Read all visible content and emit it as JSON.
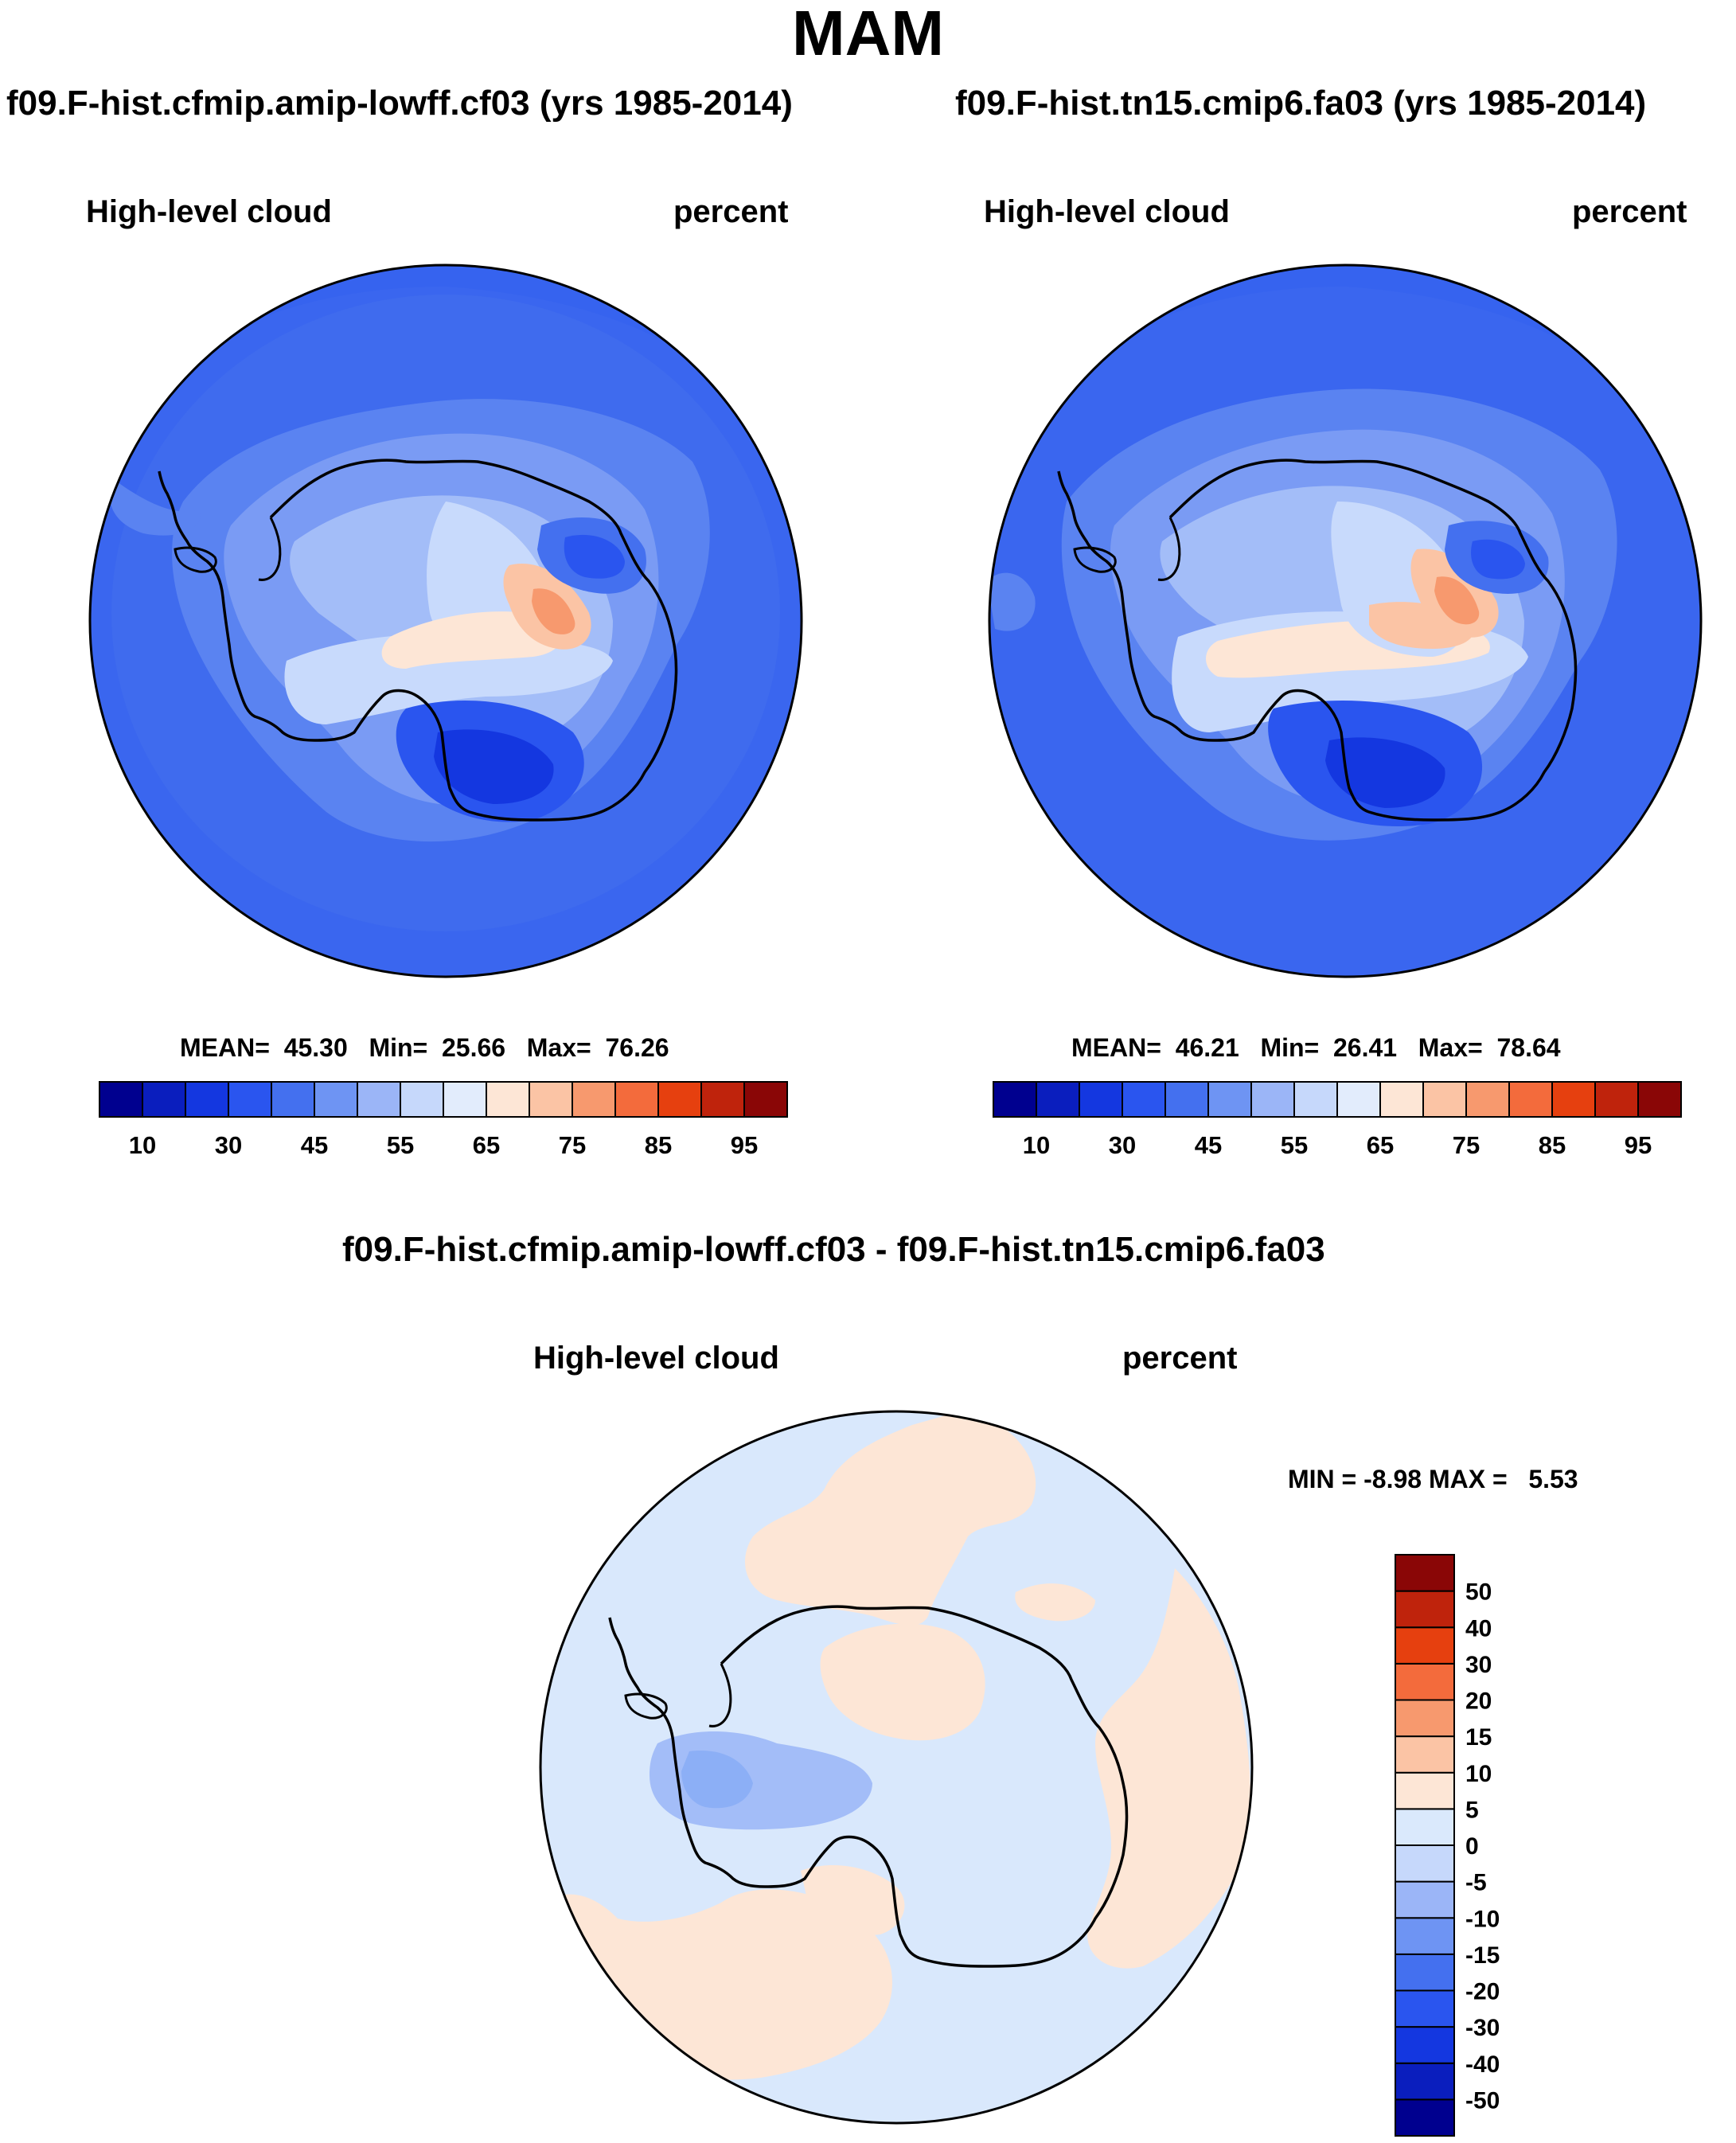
{
  "main_title": "MAM",
  "panels": [
    {
      "title": "f09.F-hist.cfmip.amip-lowff.cf03 (yrs 1985-2014)",
      "variable": "High-level cloud",
      "units": "percent",
      "stats": {
        "mean_label": "MEAN=",
        "mean": "45.30",
        "min_label": "Min=",
        "min": "25.66",
        "max_label": "Max=",
        "max": "76.26"
      }
    },
    {
      "title": "f09.F-hist.tn15.cmip6.fa03 (yrs 1985-2014)",
      "variable": "High-level cloud",
      "units": "percent",
      "stats": {
        "mean_label": "MEAN=",
        "mean": "46.21",
        "min_label": "Min=",
        "min": "26.41",
        "max_label": "Max=",
        "max": "78.64"
      }
    }
  ],
  "diff_panel": {
    "title": "f09.F-hist.cfmip.amip-lowff.cf03 - f09.F-hist.tn15.cmip6.fa03",
    "variable": "High-level cloud",
    "units": "percent",
    "min_max": {
      "min_label": "MIN =",
      "min": "-8.98",
      "max_label": "MAX =",
      "max": "5.53"
    }
  },
  "colorbar_main": {
    "colors": [
      "#00008f",
      "#0a1ebe",
      "#1437e0",
      "#2a55ef",
      "#4470ef",
      "#6e94f3",
      "#9bb5f7",
      "#c6d8fb",
      "#e2ecfc",
      "#fde6d6",
      "#fbc4a5",
      "#f7996e",
      "#f36b3c",
      "#e6400f",
      "#bf230c",
      "#8a0606"
    ],
    "labels": [
      "10",
      "30",
      "45",
      "55",
      "65",
      "75",
      "85",
      "95"
    ]
  },
  "colorbar_diff": {
    "colors": [
      "#00008f",
      "#0a1ebe",
      "#1437e0",
      "#2a55ef",
      "#4470ef",
      "#6e94f3",
      "#9bb5f7",
      "#c6d8fb",
      "#dae9fc",
      "#fde6d6",
      "#fbc4a5",
      "#f7996e",
      "#f36b3c",
      "#e6400f",
      "#bf230c",
      "#8a0606"
    ],
    "labels": [
      "-50",
      "-40",
      "-30",
      "-20",
      "-15",
      "-10",
      "-5",
      "0",
      "5",
      "10",
      "15",
      "20",
      "30",
      "40",
      "50"
    ]
  }
}
